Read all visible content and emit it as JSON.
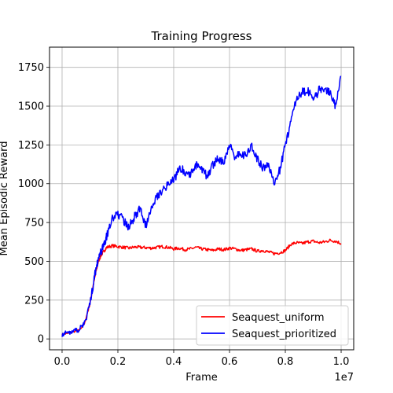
{
  "chart_data": {
    "type": "line",
    "title": "Training Progress",
    "xlabel": "Frame",
    "ylabel": "Mean Episodic Reward",
    "x_offset_text": "1e7",
    "xlim": [
      0,
      1.0
    ],
    "ylim": [
      -70,
      1880
    ],
    "xticks": [
      0.0,
      0.2,
      0.4,
      0.6,
      0.8,
      1.0
    ],
    "xtick_labels": [
      "0.0",
      "0.2",
      "0.4",
      "0.6",
      "0.8",
      "1.0"
    ],
    "yticks": [
      0,
      250,
      500,
      750,
      1000,
      1250,
      1500,
      1750
    ],
    "ytick_labels": [
      "0",
      "250",
      "500",
      "750",
      "1000",
      "1250",
      "1500",
      "1750"
    ],
    "grid": true,
    "legend_position": "lower-right",
    "x": [
      0.0,
      0.02,
      0.04,
      0.06,
      0.08,
      0.1,
      0.11,
      0.12,
      0.13,
      0.14,
      0.15,
      0.16,
      0.18,
      0.2,
      0.22,
      0.24,
      0.26,
      0.28,
      0.3,
      0.32,
      0.34,
      0.36,
      0.38,
      0.4,
      0.42,
      0.44,
      0.46,
      0.48,
      0.5,
      0.52,
      0.54,
      0.56,
      0.58,
      0.6,
      0.62,
      0.64,
      0.66,
      0.68,
      0.7,
      0.72,
      0.74,
      0.76,
      0.78,
      0.8,
      0.82,
      0.84,
      0.86,
      0.88,
      0.9,
      0.92,
      0.94,
      0.96,
      0.98,
      1.0
    ],
    "series": [
      {
        "name": "Seaquest_uniform",
        "color": "#ff0000",
        "values": [
          30,
          35,
          45,
          55,
          95,
          230,
          330,
          420,
          500,
          540,
          565,
          590,
          600,
          595,
          590,
          585,
          592,
          590,
          588,
          585,
          590,
          595,
          590,
          580,
          585,
          575,
          580,
          590,
          580,
          575,
          570,
          580,
          575,
          585,
          580,
          570,
          575,
          580,
          565,
          570,
          560,
          550,
          555,
          570,
          610,
          620,
          615,
          625,
          630,
          620,
          625,
          635,
          630,
          615
        ]
      },
      {
        "name": "Seaquest_prioritized",
        "color": "#0000ff",
        "values": [
          30,
          40,
          50,
          60,
          100,
          230,
          330,
          440,
          520,
          560,
          610,
          660,
          780,
          810,
          760,
          720,
          790,
          840,
          730,
          860,
          920,
          960,
          1000,
          1020,
          1100,
          1080,
          1060,
          1120,
          1090,
          1050,
          1120,
          1160,
          1140,
          1250,
          1170,
          1200,
          1180,
          1240,
          1160,
          1100,
          1120,
          1010,
          1090,
          1250,
          1400,
          1560,
          1590,
          1600,
          1540,
          1600,
          1620,
          1580,
          1500,
          1690
        ]
      }
    ]
  }
}
